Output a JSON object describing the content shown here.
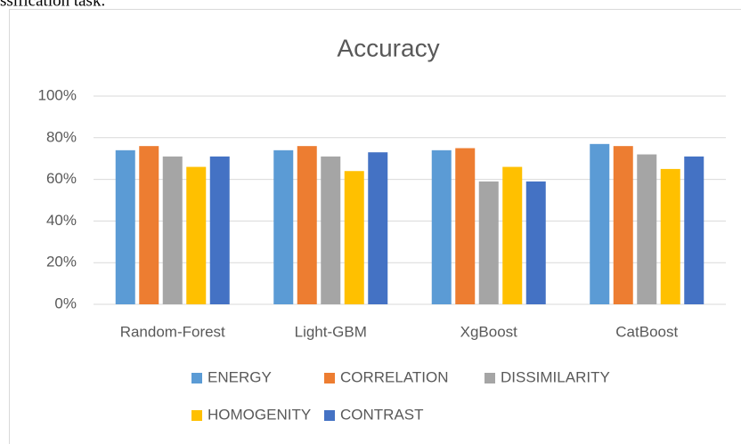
{
  "header_text": "ssification task.",
  "chart_data": {
    "type": "bar",
    "title": "Accuracy",
    "categories": [
      "Random-Forest",
      "Light-GBM",
      "XgBoost",
      "CatBoost"
    ],
    "series": [
      {
        "name": "ENERGY",
        "color": "#5b9bd5",
        "values": [
          74,
          74,
          74,
          77
        ]
      },
      {
        "name": "CORRELATION",
        "color": "#ed7d31",
        "values": [
          76,
          76,
          75,
          76
        ]
      },
      {
        "name": "DISSIMILARITY",
        "color": "#a5a5a5",
        "values": [
          71,
          71,
          59,
          72
        ]
      },
      {
        "name": "HOMOGENITY",
        "color": "#ffc000",
        "values": [
          66,
          64,
          66,
          65
        ]
      },
      {
        "name": "CONTRAST",
        "color": "#4472c4",
        "values": [
          71,
          73,
          59,
          71
        ]
      }
    ],
    "ylim": [
      0,
      100
    ],
    "yticks": [
      {
        "value": 0,
        "label": "0%"
      },
      {
        "value": 20,
        "label": "20%"
      },
      {
        "value": 40,
        "label": "40%"
      },
      {
        "value": 60,
        "label": "60%"
      },
      {
        "value": 80,
        "label": "80%"
      },
      {
        "value": 100,
        "label": "100%"
      }
    ],
    "grid": true,
    "legend": "bottom"
  }
}
